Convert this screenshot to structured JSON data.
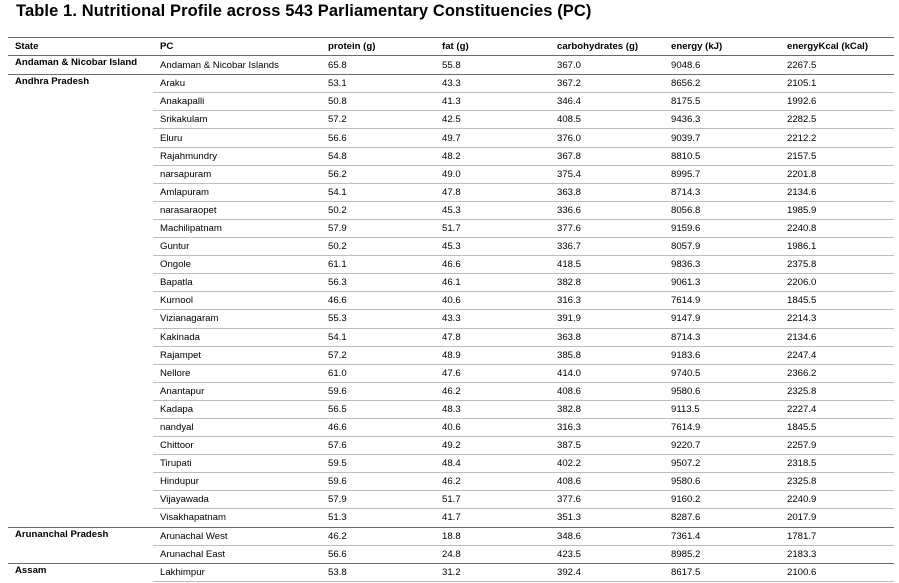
{
  "title": "Table 1. Nutritional Profile across 543 Parliamentary Constituencies (PC)",
  "columns": [
    "State",
    "PC",
    "protein (g)",
    "fat (g)",
    "carbohydrates (g)",
    "energy (kJ)",
    "energyKcal (kCal)"
  ],
  "groups": [
    {
      "state": "Andaman & Nicobar Island",
      "rows": [
        [
          "Andaman & Nicobar Islands",
          "65.8",
          "55.8",
          "367.0",
          "9048.6",
          "2267.5"
        ]
      ]
    },
    {
      "state": "Andhra Pradesh",
      "rows": [
        [
          "Araku",
          "53.1",
          "43.3",
          "367.2",
          "8656.2",
          "2105.1"
        ],
        [
          "Anakapalli",
          "50.8",
          "41.3",
          "346.4",
          "8175.5",
          "1992.6"
        ],
        [
          "Srikakulam",
          "57.2",
          "42.5",
          "408.5",
          "9436.3",
          "2282.5"
        ],
        [
          "Eluru",
          "56.6",
          "49.7",
          "376.0",
          "9039.7",
          "2212.2"
        ],
        [
          "Rajahmundry",
          "54.8",
          "48.2",
          "367.8",
          "8810.5",
          "2157.5"
        ],
        [
          "narsapuram",
          "56.2",
          "49.0",
          "375.4",
          "8995.7",
          "2201.8"
        ],
        [
          "Amlapuram",
          "54.1",
          "47.8",
          "363.8",
          "8714.3",
          "2134.6"
        ],
        [
          "narasaraopet",
          "50.2",
          "45.3",
          "336.6",
          "8056.8",
          "1985.9"
        ],
        [
          "Machilipatnam",
          "57.9",
          "51.7",
          "377.6",
          "9159.6",
          "2240.8"
        ],
        [
          "Guntur",
          "50.2",
          "45.3",
          "336.7",
          "8057.9",
          "1986.1"
        ],
        [
          "Ongole",
          "61.1",
          "46.6",
          "418.5",
          "9836.3",
          "2375.8"
        ],
        [
          "Bapatla",
          "56.3",
          "46.1",
          "382.8",
          "9061.3",
          "2206.0"
        ],
        [
          "Kurnool",
          "46.6",
          "40.6",
          "316.3",
          "7614.9",
          "1845.5"
        ],
        [
          "Vizianagaram",
          "55.3",
          "43.3",
          "391.9",
          "9147.9",
          "2214.3"
        ],
        [
          "Kakinada",
          "54.1",
          "47.8",
          "363.8",
          "8714.3",
          "2134.6"
        ],
        [
          "Rajampet",
          "57.2",
          "48.9",
          "385.8",
          "9183.6",
          "2247.4"
        ],
        [
          "Nellore",
          "61.0",
          "47.6",
          "414.0",
          "9740.5",
          "2366.2"
        ],
        [
          "Anantapur",
          "59.6",
          "46.2",
          "408.6",
          "9580.6",
          "2325.8"
        ],
        [
          "Kadapa",
          "56.5",
          "48.3",
          "382.8",
          "9113.5",
          "2227.4"
        ],
        [
          "nandyal",
          "46.6",
          "40.6",
          "316.3",
          "7614.9",
          "1845.5"
        ],
        [
          "Chittoor",
          "57.6",
          "49.2",
          "387.5",
          "9220.7",
          "2257.9"
        ],
        [
          "Tirupati",
          "59.5",
          "48.4",
          "402.2",
          "9507.2",
          "2318.5"
        ],
        [
          "Hindupur",
          "59.6",
          "46.2",
          "408.6",
          "9580.6",
          "2325.8"
        ],
        [
          "Vijayawada",
          "57.9",
          "51.7",
          "377.6",
          "9160.2",
          "2240.9"
        ],
        [
          "Visakhapatnam",
          "51.3",
          "41.7",
          "351.3",
          "8287.6",
          "2017.9"
        ]
      ]
    },
    {
      "state": "Arunanchal Pradesh",
      "rows": [
        [
          "Arunachal West",
          "46.2",
          "18.8",
          "348.6",
          "7361.4",
          "1781.7"
        ],
        [
          "Arunachal East",
          "56.6",
          "24.8",
          "423.5",
          "8985.2",
          "2183.3"
        ]
      ]
    },
    {
      "state": "Assam",
      "rows": [
        [
          "Lakhimpur",
          "53.8",
          "31.2",
          "392.4",
          "8617.5",
          "2100.6"
        ]
      ]
    }
  ]
}
